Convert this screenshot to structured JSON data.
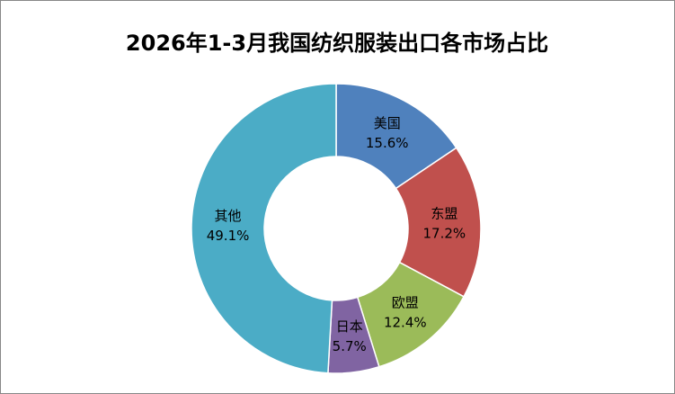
{
  "chart_data": {
    "type": "donut",
    "title": "2026年1-3月我国纺织服装出口各市场占比",
    "categories": [
      "美国",
      "东盟",
      "欧盟",
      "日本",
      "其他"
    ],
    "values": [
      15.6,
      17.2,
      12.4,
      5.7,
      49.1
    ],
    "value_labels": [
      "15.6%",
      "17.2%",
      "12.4%",
      "5.7%",
      "49.1%"
    ],
    "colors": [
      "#4f81bd",
      "#c0504d",
      "#9bbb59",
      "#8064a2",
      "#4bacc6"
    ]
  }
}
